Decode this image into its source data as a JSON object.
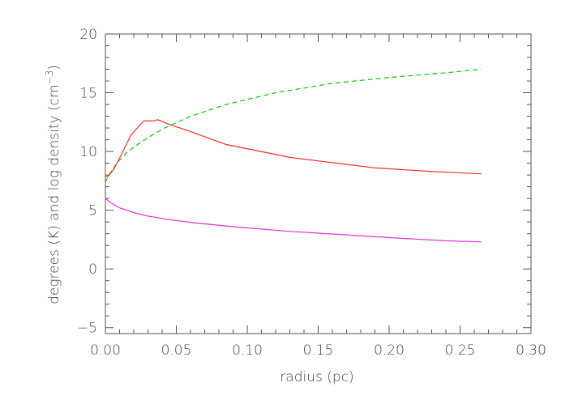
{
  "chart_data": {
    "type": "line",
    "title": "",
    "xlabel": "radius (pc)",
    "ylabel_main": "degrees (K) and log density (cm",
    "ylabel_sup": "−3",
    "ylabel_close": ")",
    "xlim": [
      0.0,
      0.3
    ],
    "ylim": [
      -5.5,
      20
    ],
    "xticks": [
      0.0,
      0.05,
      0.1,
      0.15,
      0.2,
      0.25,
      0.3
    ],
    "xtick_labels": [
      "0.00",
      "0.05",
      "0.10",
      "0.15",
      "0.20",
      "0.25",
      "0.30"
    ],
    "yticks": [
      -5,
      0,
      5,
      10,
      15,
      20
    ],
    "ytick_labels": [
      "−5",
      "0",
      "5",
      "10",
      "15",
      "20"
    ],
    "grid": false,
    "legend": "none",
    "series": [
      {
        "color": "#00cc00",
        "style": "dashed",
        "x": [
          0.0,
          0.003,
          0.008,
          0.015,
          0.025,
          0.04,
          0.06,
          0.085,
          0.12,
          0.16,
          0.2,
          0.24,
          0.265
        ],
        "y": [
          7.4,
          8.1,
          9.0,
          9.9,
          10.8,
          11.9,
          13.0,
          14.0,
          15.0,
          15.8,
          16.3,
          16.7,
          17.0
        ]
      },
      {
        "color": "#ff2a2a",
        "style": "solid",
        "x": [
          0.0,
          0.002,
          0.006,
          0.012,
          0.018,
          0.027,
          0.033,
          0.037,
          0.045,
          0.06,
          0.085,
          0.13,
          0.19,
          0.23,
          0.265
        ],
        "y": [
          7.9,
          7.9,
          8.5,
          9.9,
          11.4,
          12.6,
          12.6,
          12.7,
          12.3,
          11.7,
          10.6,
          9.5,
          8.6,
          8.3,
          8.1
        ]
      },
      {
        "color": "#dd33dd",
        "style": "solid",
        "x": [
          0.0,
          0.003,
          0.01,
          0.02,
          0.03,
          0.045,
          0.065,
          0.09,
          0.13,
          0.17,
          0.21,
          0.24,
          0.265
        ],
        "y": [
          6.0,
          5.7,
          5.2,
          4.8,
          4.5,
          4.2,
          3.9,
          3.6,
          3.2,
          2.9,
          2.6,
          2.4,
          2.3
        ]
      }
    ]
  }
}
